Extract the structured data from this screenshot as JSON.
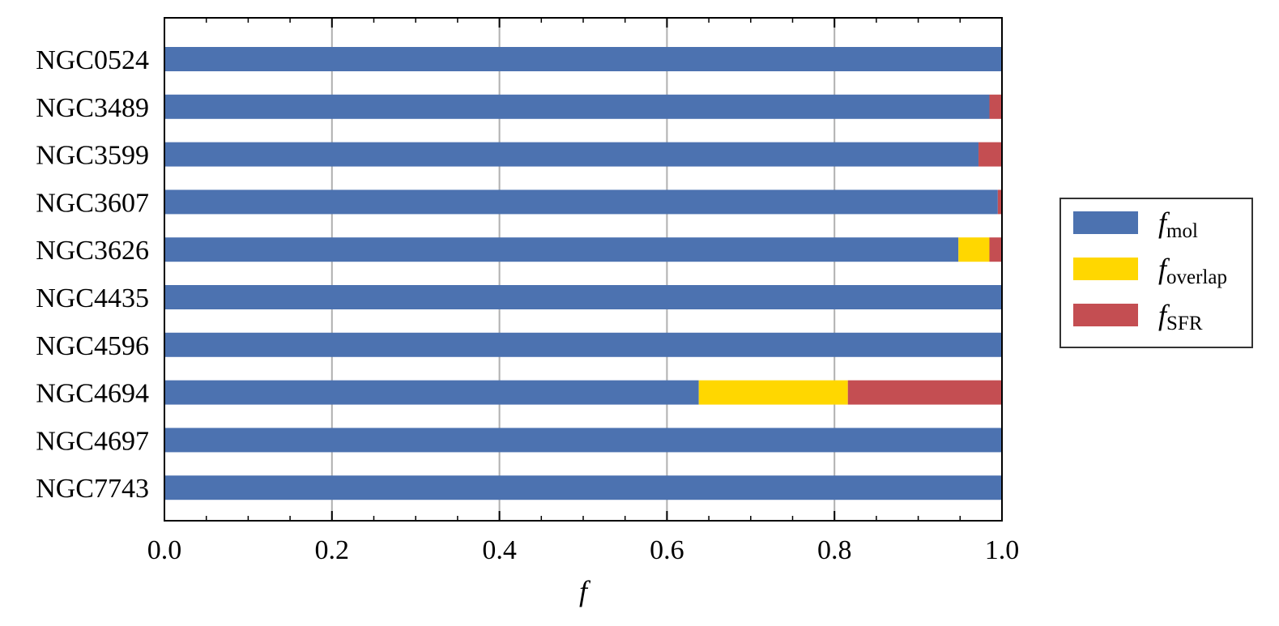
{
  "chart_data": {
    "type": "bar",
    "orientation": "horizontal",
    "stacked": true,
    "categories": [
      "NGC0524",
      "NGC3489",
      "NGC3599",
      "NGC3607",
      "NGC3626",
      "NGC4435",
      "NGC4596",
      "NGC4694",
      "NGC4697",
      "NGC7743"
    ],
    "series": [
      {
        "key": "mol",
        "name_main": "f",
        "name_sub": "mol",
        "color": "#4c72b0",
        "values": [
          1.0,
          0.985,
          0.972,
          0.995,
          0.948,
          1.0,
          1.0,
          0.638,
          1.0,
          1.0
        ]
      },
      {
        "key": "overlap",
        "name_main": "f",
        "name_sub": "overlap",
        "color": "#ffd700",
        "values": [
          0.0,
          0.0,
          0.0,
          0.0,
          0.037,
          0.0,
          0.0,
          0.178,
          0.0,
          0.0
        ]
      },
      {
        "key": "SFR",
        "name_main": "f",
        "name_sub": "SFR",
        "color": "#c44e52",
        "values": [
          0.0,
          0.015,
          0.028,
          0.005,
          0.015,
          0.0,
          0.0,
          0.184,
          0.0,
          0.0
        ]
      }
    ],
    "xlabel": "f",
    "xlim": [
      0.0,
      1.0
    ],
    "xticks": [
      0.0,
      0.2,
      0.4,
      0.6,
      0.8,
      1.0
    ],
    "xtick_labels": [
      "0.0",
      "0.2",
      "0.4",
      "0.6",
      "0.8",
      "1.0"
    ],
    "minor_xticks": [
      0.05,
      0.1,
      0.15,
      0.25,
      0.3,
      0.35,
      0.45,
      0.5,
      0.55,
      0.65,
      0.7,
      0.75,
      0.85,
      0.9,
      0.95
    ],
    "grid": "vertical, major ticks",
    "legend_position": "outside-right",
    "grid_color": "#b0b0b0"
  }
}
